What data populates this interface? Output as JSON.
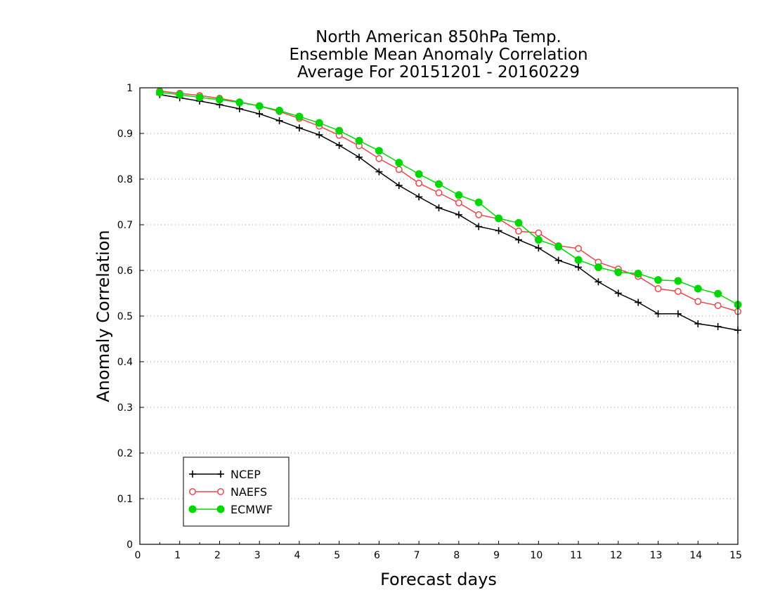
{
  "chart_data": {
    "type": "line",
    "title": [
      "North American 850hPa Temp.",
      "Ensemble Mean Anomaly Correlation",
      "Average For 20151201 - 20160229"
    ],
    "xlabel": "Forecast days",
    "ylabel": "Anomaly Correlation",
    "xlim": [
      0,
      15
    ],
    "ylim": [
      0,
      1
    ],
    "xticks": [
      0,
      1,
      2,
      3,
      4,
      5,
      6,
      7,
      8,
      9,
      10,
      11,
      12,
      13,
      14,
      15
    ],
    "yticks": [
      0,
      0.1,
      0.2,
      0.3,
      0.4,
      0.5,
      0.6,
      0.7,
      0.8,
      0.9,
      1
    ],
    "ytick_labels": [
      "0",
      "0.1",
      "0.2",
      "0.3",
      "0.4",
      "0.5",
      "0.6",
      "0.7",
      "0.8",
      "0.9",
      "1"
    ],
    "grid": "horizontal dotted",
    "legend_position": "bottom-left",
    "x": [
      0.5,
      1,
      1.5,
      2,
      2.5,
      3,
      3.5,
      4,
      4.5,
      5,
      5.5,
      6,
      6.5,
      7,
      7.5,
      8,
      8.5,
      9,
      9.5,
      10,
      10.5,
      11,
      11.5,
      12,
      12.5,
      13,
      13.5,
      14,
      14.5,
      15
    ],
    "series": [
      {
        "name": "NCEP",
        "color": "#000000",
        "marker": "plus",
        "values": [
          0.985,
          0.978,
          0.971,
          0.963,
          0.954,
          0.943,
          0.928,
          0.912,
          0.897,
          0.874,
          0.848,
          0.816,
          0.786,
          0.761,
          0.737,
          0.722,
          0.696,
          0.687,
          0.667,
          0.649,
          0.622,
          0.607,
          0.575,
          0.55,
          0.53,
          0.505,
          0.505,
          0.483,
          0.477,
          0.469
        ]
      },
      {
        "name": "NAEFS",
        "color": "#e8474d",
        "marker": "open-circle",
        "values": [
          0.993,
          0.988,
          0.983,
          0.977,
          0.969,
          0.96,
          0.948,
          0.933,
          0.916,
          0.896,
          0.873,
          0.845,
          0.821,
          0.791,
          0.77,
          0.748,
          0.722,
          0.713,
          0.686,
          0.682,
          0.654,
          0.648,
          0.618,
          0.603,
          0.587,
          0.56,
          0.554,
          0.532,
          0.523,
          0.51
        ]
      },
      {
        "name": "ECMWF",
        "color": "#00d700",
        "marker": "filled-circle",
        "values": [
          0.99,
          0.985,
          0.979,
          0.974,
          0.968,
          0.96,
          0.95,
          0.937,
          0.923,
          0.906,
          0.884,
          0.862,
          0.836,
          0.811,
          0.789,
          0.765,
          0.749,
          0.714,
          0.704,
          0.667,
          0.652,
          0.623,
          0.607,
          0.596,
          0.593,
          0.579,
          0.577,
          0.56,
          0.549,
          0.525
        ]
      }
    ]
  }
}
